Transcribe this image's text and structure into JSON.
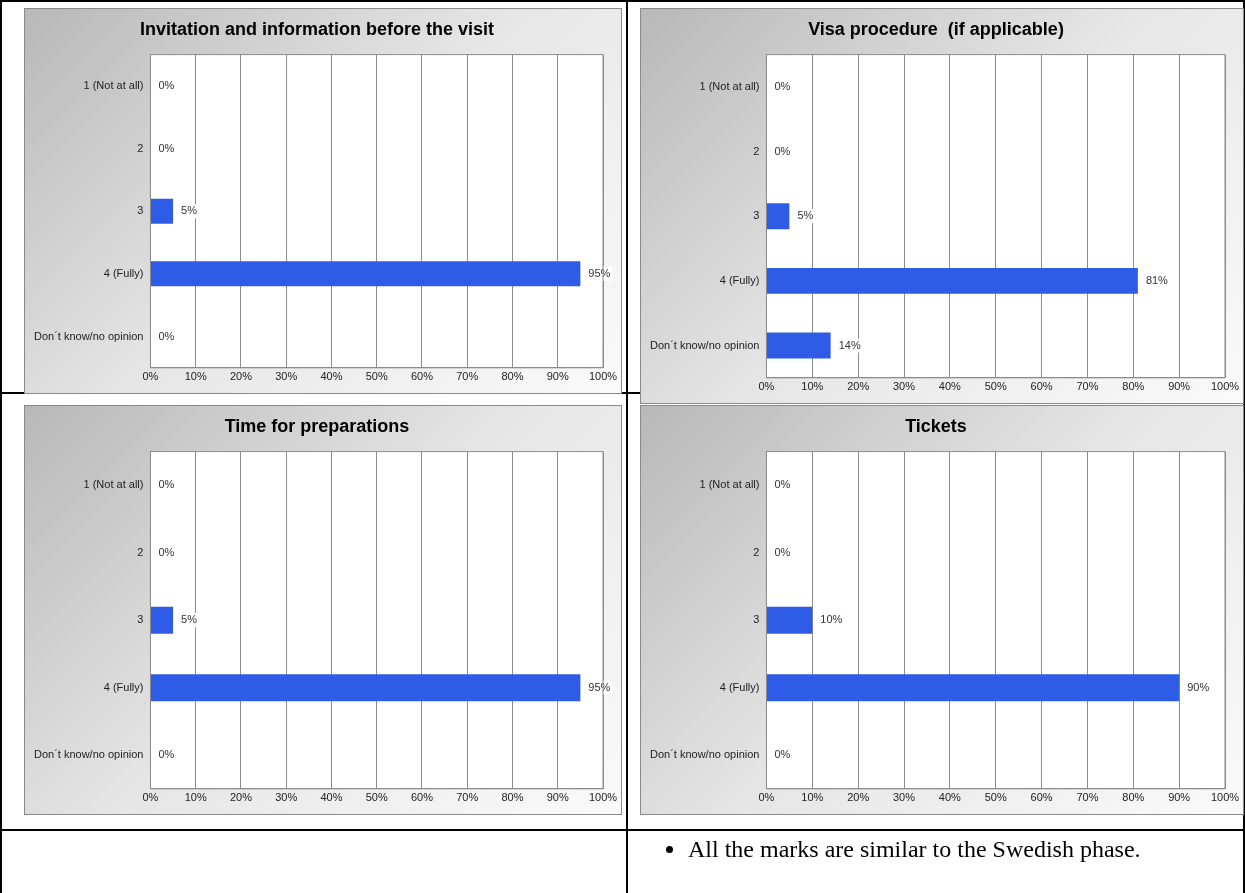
{
  "chart_data": [
    {
      "type": "bar",
      "orientation": "horizontal",
      "title": "Invitation and information before the visit",
      "categories": [
        "1 (Not at all)",
        "2",
        "3",
        "4 (Fully)",
        "Don´t know/no opinion"
      ],
      "values": [
        0,
        0,
        5,
        95,
        0
      ],
      "value_labels": [
        "0%",
        "0%",
        "5%",
        "95%",
        "0%"
      ],
      "color": "#2f5ce6",
      "xlim": [
        0,
        100
      ],
      "xticks": [
        {
          "value": 0,
          "label": "0%"
        },
        {
          "value": 10,
          "label": "10%"
        },
        {
          "value": 20,
          "label": "20%"
        },
        {
          "value": 30,
          "label": "30%"
        },
        {
          "value": 40,
          "label": "40%"
        },
        {
          "value": 50,
          "label": "50%"
        },
        {
          "value": 60,
          "label": "60%"
        },
        {
          "value": 70,
          "label": "70%"
        },
        {
          "value": 80,
          "label": "80%"
        },
        {
          "value": 90,
          "label": "90%"
        },
        {
          "value": 100,
          "label": "100%"
        }
      ],
      "grid": "x"
    },
    {
      "type": "bar",
      "orientation": "horizontal",
      "title": "Visa procedure  (if applicable)",
      "categories": [
        "1 (Not at all)",
        "2",
        "3",
        "4 (Fully)",
        "Don´t know/no opinion"
      ],
      "values": [
        0,
        0,
        5,
        81,
        14
      ],
      "value_labels": [
        "0%",
        "0%",
        "5%",
        "81%",
        "14%"
      ],
      "color": "#2f5ce6",
      "xlim": [
        0,
        100
      ],
      "xticks": [
        {
          "value": 0,
          "label": "0%"
        },
        {
          "value": 10,
          "label": "10%"
        },
        {
          "value": 20,
          "label": "20%"
        },
        {
          "value": 30,
          "label": "30%"
        },
        {
          "value": 40,
          "label": "40%"
        },
        {
          "value": 50,
          "label": "50%"
        },
        {
          "value": 60,
          "label": "60%"
        },
        {
          "value": 70,
          "label": "70%"
        },
        {
          "value": 80,
          "label": "80%"
        },
        {
          "value": 90,
          "label": "90%"
        },
        {
          "value": 100,
          "label": "100%"
        }
      ],
      "grid": "x"
    },
    {
      "type": "bar",
      "orientation": "horizontal",
      "title": "Time for preparations",
      "categories": [
        "1 (Not at all)",
        "2",
        "3",
        "4 (Fully)",
        "Don´t know/no opinion"
      ],
      "values": [
        0,
        0,
        5,
        95,
        0
      ],
      "value_labels": [
        "0%",
        "0%",
        "5%",
        "95%",
        "0%"
      ],
      "color": "#2f5ce6",
      "xlim": [
        0,
        100
      ],
      "xticks": [
        {
          "value": 0,
          "label": "0%"
        },
        {
          "value": 10,
          "label": "10%"
        },
        {
          "value": 20,
          "label": "20%"
        },
        {
          "value": 30,
          "label": "30%"
        },
        {
          "value": 40,
          "label": "40%"
        },
        {
          "value": 50,
          "label": "50%"
        },
        {
          "value": 60,
          "label": "60%"
        },
        {
          "value": 70,
          "label": "70%"
        },
        {
          "value": 80,
          "label": "80%"
        },
        {
          "value": 90,
          "label": "90%"
        },
        {
          "value": 100,
          "label": "100%"
        }
      ],
      "grid": "x"
    },
    {
      "type": "bar",
      "orientation": "horizontal",
      "title": "Tickets",
      "categories": [
        "1 (Not at all)",
        "2",
        "3",
        "4 (Fully)",
        "Don´t know/no opinion"
      ],
      "values": [
        0,
        0,
        10,
        90,
        0
      ],
      "value_labels": [
        "0%",
        "0%",
        "10%",
        "90%",
        "0%"
      ],
      "color": "#2f5ce6",
      "xlim": [
        0,
        100
      ],
      "xticks": [
        {
          "value": 0,
          "label": "0%"
        },
        {
          "value": 10,
          "label": "10%"
        },
        {
          "value": 20,
          "label": "20%"
        },
        {
          "value": 30,
          "label": "30%"
        },
        {
          "value": 40,
          "label": "40%"
        },
        {
          "value": 50,
          "label": "50%"
        },
        {
          "value": 60,
          "label": "60%"
        },
        {
          "value": 70,
          "label": "70%"
        },
        {
          "value": 80,
          "label": "80%"
        },
        {
          "value": 90,
          "label": "90%"
        },
        {
          "value": 100,
          "label": "100%"
        }
      ],
      "grid": "x"
    },
    {
      "type": "other",
      "annotations": [
        "All the marks are similar to the Swedish phase."
      ]
    }
  ]
}
